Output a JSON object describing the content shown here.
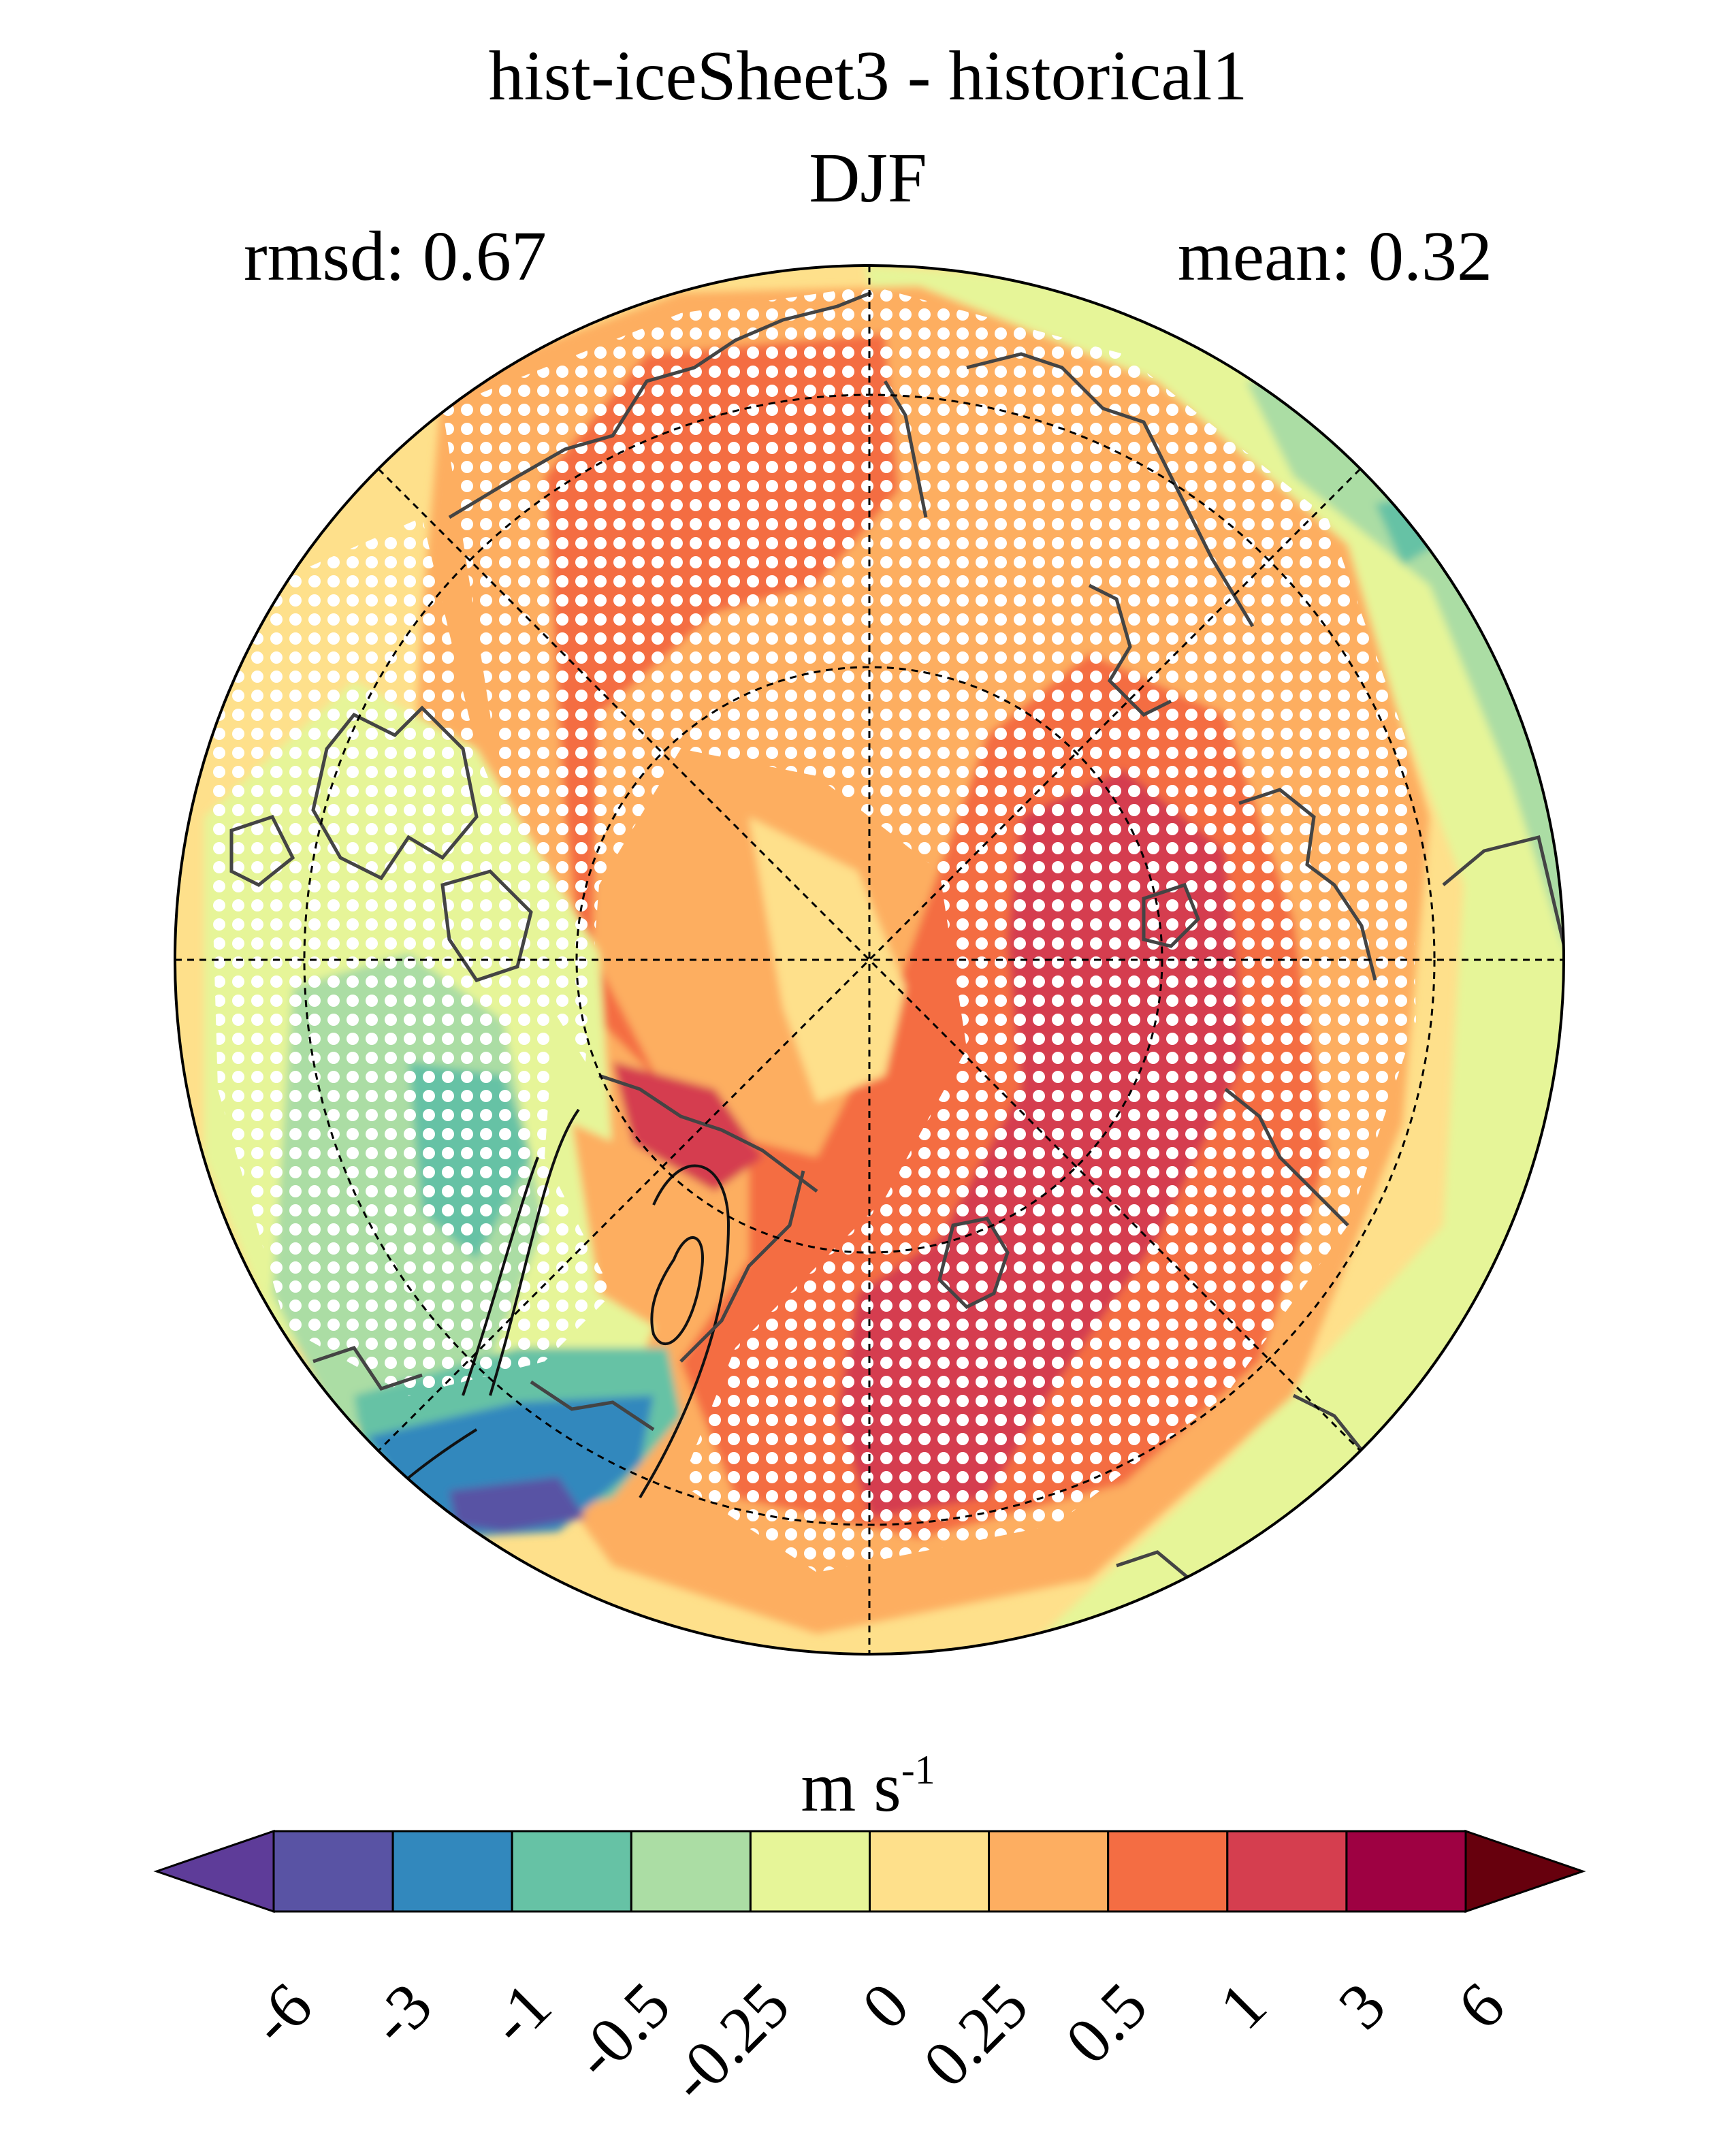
{
  "header": {
    "title": "hist-iceSheet3 - historical1",
    "season": "DJF",
    "rmsd_label": "rmsd: 0.67",
    "mean_label": "mean: 0.32"
  },
  "map": {
    "projection": "north polar stereographic",
    "hatching": "white dots (significance stippling)",
    "coastlines": true,
    "graticule": "dashed"
  },
  "colorbar": {
    "units_main": "m s",
    "units_exp": "-1",
    "ticks": [
      "-6",
      "-3",
      "-1",
      "-0.5",
      "-0.25",
      "0",
      "0.25",
      "0.5",
      "1",
      "3",
      "6"
    ],
    "colors": [
      "#5e3c99",
      "#5953a4",
      "#3288bd",
      "#66c2a5",
      "#abdda4",
      "#e6f598",
      "#fee08b",
      "#fdae61",
      "#f46d43",
      "#d53e4f",
      "#9e0142",
      "#67000d"
    ],
    "extend": "both"
  }
}
